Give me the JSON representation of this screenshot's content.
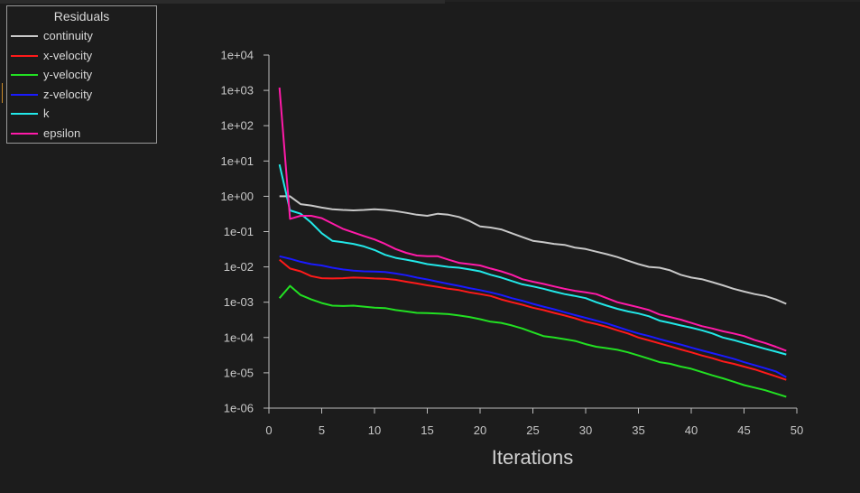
{
  "chart_data": {
    "type": "line",
    "title": "",
    "xlabel": "Iterations",
    "ylabel": "",
    "xlim": [
      0,
      50
    ],
    "ylim_log10": [
      -6,
      4
    ],
    "y_scale": "log",
    "x_ticks": [
      "0",
      "5",
      "10",
      "15",
      "20",
      "25",
      "30",
      "35",
      "40",
      "45",
      "50"
    ],
    "y_ticks": [
      "1e-06",
      "1e-05",
      "1e-04",
      "1e-03",
      "1e-02",
      "1e-01",
      "1e+00",
      "1e+01",
      "1e+02",
      "1e+03",
      "1e+04"
    ],
    "legend_title": "Residuals",
    "legend_position": "top-left",
    "grid": false,
    "x": [
      1,
      2,
      3,
      4,
      5,
      6,
      7,
      8,
      9,
      10,
      11,
      12,
      13,
      14,
      15,
      16,
      17,
      18,
      19,
      20,
      21,
      22,
      23,
      24,
      25,
      26,
      27,
      28,
      29,
      30,
      31,
      32,
      33,
      34,
      35,
      36,
      37,
      38,
      39,
      40,
      41,
      42,
      43,
      44,
      45,
      46,
      47,
      48,
      49
    ],
    "series": [
      {
        "name": "continuity",
        "color": "#c8c8c8",
        "values": [
          1.0,
          1.0,
          0.6,
          0.55,
          0.48,
          0.43,
          0.41,
          0.4,
          0.41,
          0.43,
          0.41,
          0.38,
          0.34,
          0.3,
          0.28,
          0.32,
          0.3,
          0.26,
          0.2,
          0.14,
          0.13,
          0.115,
          0.09,
          0.07,
          0.055,
          0.05,
          0.045,
          0.042,
          0.035,
          0.032,
          0.027,
          0.023,
          0.019,
          0.015,
          0.012,
          0.01,
          0.0095,
          0.008,
          0.006,
          0.005,
          0.0045,
          0.0037,
          0.003,
          0.0024,
          0.002,
          0.0017,
          0.0015,
          0.0012,
          0.0009
        ]
      },
      {
        "name": "x-velocity",
        "color": "#ff1a1a",
        "values": [
          0.016,
          0.009,
          0.0075,
          0.0055,
          0.0048,
          0.0047,
          0.0048,
          0.005,
          0.0049,
          0.0047,
          0.0046,
          0.0043,
          0.0038,
          0.0034,
          0.003,
          0.0027,
          0.0024,
          0.0022,
          0.0019,
          0.0017,
          0.0015,
          0.0012,
          0.001,
          0.00085,
          0.0007,
          0.0006,
          0.0005,
          0.00042,
          0.00035,
          0.00028,
          0.00024,
          0.0002,
          0.00016,
          0.00013,
          0.0001,
          8.3e-05,
          6.8e-05,
          5.6e-05,
          4.6e-05,
          3.8e-05,
          3.1e-05,
          2.6e-05,
          2.1e-05,
          1.8e-05,
          1.5e-05,
          1.25e-05,
          1e-05,
          8e-06,
          6.3e-06
        ]
      },
      {
        "name": "y-velocity",
        "color": "#22e022",
        "values": [
          0.0013,
          0.0029,
          0.0016,
          0.0012,
          0.00095,
          0.0008,
          0.00078,
          0.0008,
          0.00075,
          0.0007,
          0.00068,
          0.0006,
          0.00055,
          0.0005,
          0.00049,
          0.00048,
          0.00046,
          0.00042,
          0.00038,
          0.00033,
          0.00028,
          0.00026,
          0.00022,
          0.00018,
          0.00014,
          0.00011,
          0.0001,
          9e-05,
          8e-05,
          6.5e-05,
          5.5e-05,
          5e-05,
          4.5e-05,
          3.8e-05,
          3.1e-05,
          2.5e-05,
          2e-05,
          1.8e-05,
          1.5e-05,
          1.3e-05,
          1.05e-05,
          8.5e-06,
          7e-06,
          5.6e-06,
          4.5e-06,
          3.8e-06,
          3.2e-06,
          2.6e-06,
          2.1e-06
        ]
      },
      {
        "name": "z-velocity",
        "color": "#1a1aff",
        "values": [
          0.02,
          0.017,
          0.014,
          0.012,
          0.011,
          0.0095,
          0.0085,
          0.0078,
          0.0075,
          0.0074,
          0.0072,
          0.0065,
          0.0058,
          0.005,
          0.0044,
          0.0038,
          0.0033,
          0.0029,
          0.0025,
          0.0022,
          0.0019,
          0.0016,
          0.0013,
          0.0011,
          0.0009,
          0.00075,
          0.00063,
          0.00052,
          0.00043,
          0.00036,
          0.0003,
          0.00025,
          0.0002,
          0.00016,
          0.00013,
          0.00011,
          9e-05,
          7.5e-05,
          6.3e-05,
          5.2e-05,
          4.3e-05,
          3.6e-05,
          3e-05,
          2.5e-05,
          2e-05,
          1.65e-05,
          1.35e-05,
          1.1e-05,
          7.5e-06
        ]
      },
      {
        "name": "k",
        "color": "#22e8e8",
        "values": [
          8.0,
          0.4,
          0.32,
          0.18,
          0.09,
          0.055,
          0.05,
          0.045,
          0.038,
          0.03,
          0.022,
          0.018,
          0.016,
          0.014,
          0.012,
          0.011,
          0.01,
          0.0095,
          0.0085,
          0.0075,
          0.006,
          0.005,
          0.004,
          0.0032,
          0.0028,
          0.0024,
          0.002,
          0.0017,
          0.0015,
          0.0013,
          0.001,
          0.0008,
          0.00065,
          0.00055,
          0.00048,
          0.0004,
          0.0003,
          0.00026,
          0.00022,
          0.00019,
          0.00016,
          0.00013,
          0.0001,
          8.5e-05,
          7e-05,
          5.8e-05,
          4.8e-05,
          4e-05,
          3.3e-05
        ]
      },
      {
        "name": "epsilon",
        "color": "#ff1aa8",
        "values": [
          1200,
          0.23,
          0.28,
          0.28,
          0.24,
          0.17,
          0.12,
          0.095,
          0.075,
          0.06,
          0.045,
          0.032,
          0.025,
          0.021,
          0.02,
          0.02,
          0.016,
          0.013,
          0.012,
          0.011,
          0.009,
          0.0075,
          0.006,
          0.0045,
          0.0038,
          0.0033,
          0.0028,
          0.0024,
          0.0021,
          0.0019,
          0.0017,
          0.0013,
          0.001,
          0.00085,
          0.00072,
          0.0006,
          0.00045,
          0.00038,
          0.00032,
          0.00026,
          0.00021,
          0.00018,
          0.00015,
          0.00013,
          0.00011,
          8.5e-05,
          7e-05,
          5.5e-05,
          4.2e-05
        ]
      }
    ]
  }
}
